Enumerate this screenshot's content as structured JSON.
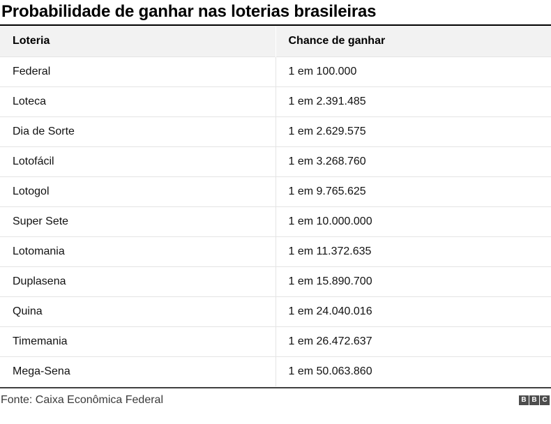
{
  "chart_data": {
    "type": "table",
    "title": "Probabilidade de ganhar nas loterias brasileiras",
    "columns": [
      "Loteria",
      "Chance de ganhar"
    ],
    "rows": [
      [
        "Federal",
        "1 em 100.000"
      ],
      [
        "Loteca",
        "1 em 2.391.485"
      ],
      [
        "Dia de Sorte",
        "1 em 2.629.575"
      ],
      [
        "Lotofácil",
        "1 em 3.268.760"
      ],
      [
        "Lotogol",
        "1 em 9.765.625"
      ],
      [
        "Super Sete",
        "1 em 10.000.000"
      ],
      [
        "Lotomania",
        "1 em 11.372.635"
      ],
      [
        "Duplasena",
        "1 em 15.890.700"
      ],
      [
        "Quina",
        "1 em 24.040.016"
      ],
      [
        "Timemania",
        "1 em 26.472.637"
      ],
      [
        "Mega-Sena",
        "1 em 50.063.860"
      ]
    ],
    "source": "Fonte: Caixa Econômica Federal"
  },
  "footer": {
    "logo_letters": [
      "B",
      "B",
      "C"
    ]
  },
  "colors": {
    "title_text": "#000000",
    "header_bg": "#f2f2f2",
    "row_bg": "#ffffff",
    "row_divider": "#e4e4e4",
    "top_rule": "#000000",
    "bottom_rule": "#404040",
    "source_text": "#3a3a3a",
    "logo_block_bg": "#4d4d4d",
    "logo_letter": "#ffffff"
  }
}
